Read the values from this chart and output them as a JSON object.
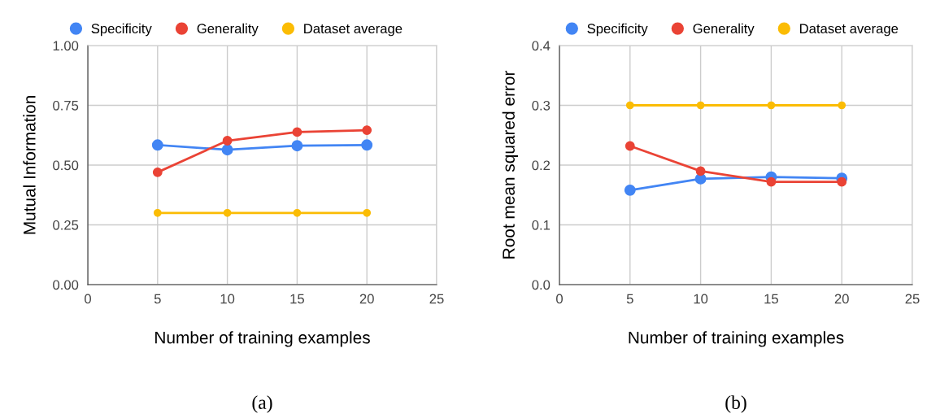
{
  "chart_data": [
    {
      "type": "line",
      "xlabel": "Number of training examples",
      "ylabel": "Mutual Information",
      "x": [
        5,
        10,
        15,
        20
      ],
      "series": [
        {
          "name": "Specificity",
          "color": "#4285f4",
          "values": [
            0.584,
            0.564,
            0.581,
            0.584
          ]
        },
        {
          "name": "Generality",
          "color": "#ea4335",
          "values": [
            0.47,
            0.602,
            0.638,
            0.646
          ]
        },
        {
          "name": "Dataset average",
          "color": "#fbbc04",
          "values": [
            0.3,
            0.3,
            0.3,
            0.3
          ]
        }
      ],
      "xlim": [
        0,
        25
      ],
      "xticks": [
        0,
        5,
        10,
        15,
        20,
        25
      ],
      "ylim": [
        0,
        1
      ],
      "yticks": [
        {
          "value": 0,
          "label": "0.00"
        },
        {
          "value": 0.25,
          "label": "0.25"
        },
        {
          "value": 0.5,
          "label": "0.50"
        },
        {
          "value": 0.75,
          "label": "0.75"
        },
        {
          "value": 1,
          "label": "1.00"
        }
      ],
      "grid": true,
      "legend": "top left",
      "marker": "circle",
      "annotations": [
        "(a)"
      ]
    },
    {
      "type": "line",
      "xlabel": "Number of training examples",
      "ylabel": "Root mean squared error",
      "x": [
        5,
        10,
        15,
        20
      ],
      "series": [
        {
          "name": "Specificity",
          "color": "#4285f4",
          "values": [
            0.158,
            0.177,
            0.18,
            0.178
          ]
        },
        {
          "name": "Generality",
          "color": "#ea4335",
          "values": [
            0.232,
            0.19,
            0.172,
            0.172
          ]
        },
        {
          "name": "Dataset average",
          "color": "#fbbc04",
          "values": [
            0.3,
            0.3,
            0.3,
            0.3
          ]
        }
      ],
      "xlim": [
        0,
        25
      ],
      "xticks": [
        0,
        5,
        10,
        15,
        20,
        25
      ],
      "ylim": [
        0,
        0.4
      ],
      "yticks": [
        {
          "value": 0,
          "label": "0.0"
        },
        {
          "value": 0.1,
          "label": "0.1"
        },
        {
          "value": 0.2,
          "label": "0.2"
        },
        {
          "value": 0.3,
          "label": "0.3"
        },
        {
          "value": 0.4,
          "label": "0.4"
        }
      ],
      "grid": true,
      "legend": "top left",
      "marker": "circle",
      "annotations": [
        "(b)"
      ]
    }
  ]
}
